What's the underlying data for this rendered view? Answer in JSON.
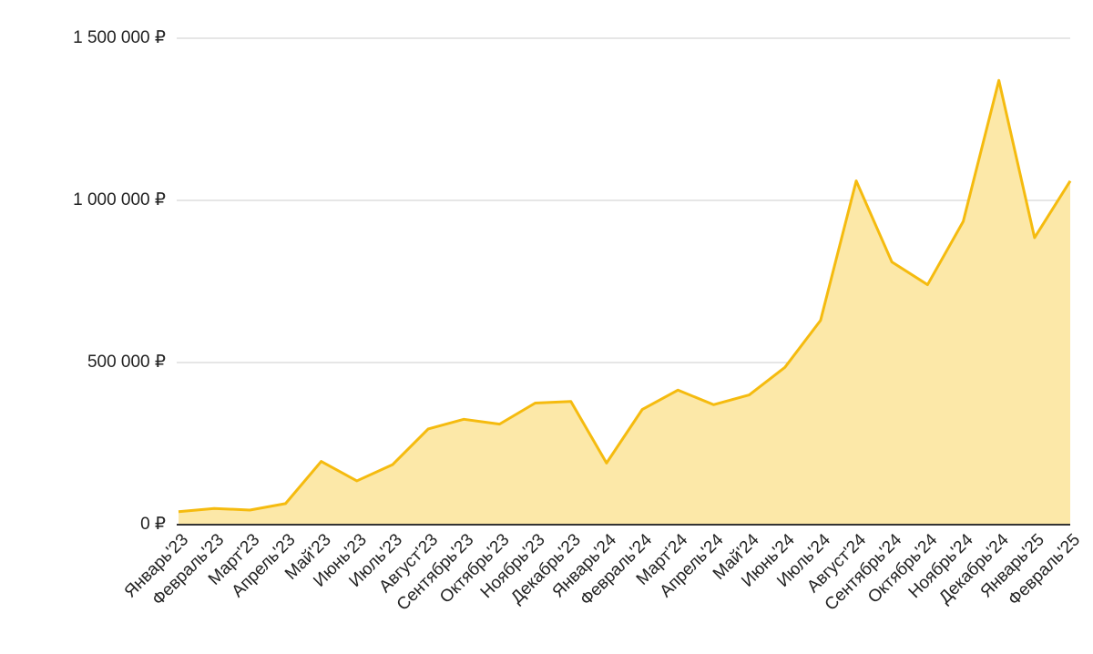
{
  "chart_data": {
    "type": "area",
    "categories": [
      "Январь'23",
      "Февраль'23",
      "Март'23",
      "Апрель'23",
      "Май'23",
      "Июнь'23",
      "Июль'23",
      "Август'23",
      "Сентябрь'23",
      "Октябрь'23",
      "Ноябрь'23",
      "Декабрь'23",
      "Январь'24",
      "Февраль'24",
      "Март'24",
      "Апрель'24",
      "Май'24",
      "Июнь'24",
      "Июль'24",
      "Август'24",
      "Сентябрь'24",
      "Октябрь'24",
      "Ноябрь'24",
      "Декабрь'24",
      "Январь'25",
      "Февраль'25"
    ],
    "values": [
      40000,
      50000,
      45000,
      65000,
      195000,
      135000,
      185000,
      295000,
      325000,
      310000,
      375000,
      380000,
      190000,
      355000,
      415000,
      370000,
      400000,
      485000,
      630000,
      1060000,
      810000,
      740000,
      935000,
      1370000,
      885000,
      1060000
    ],
    "color": "#f5bb0f",
    "fill_color": "#fce8a8",
    "ylim": [
      0,
      1500000
    ],
    "yticks": [
      {
        "value": 0,
        "label": "0 ₽"
      },
      {
        "value": 500000,
        "label": "500 000 ₽"
      },
      {
        "value": 1000000,
        "label": "1 000 000 ₽"
      },
      {
        "value": 1500000,
        "label": "1 500 000 ₽"
      }
    ],
    "grid": true
  }
}
